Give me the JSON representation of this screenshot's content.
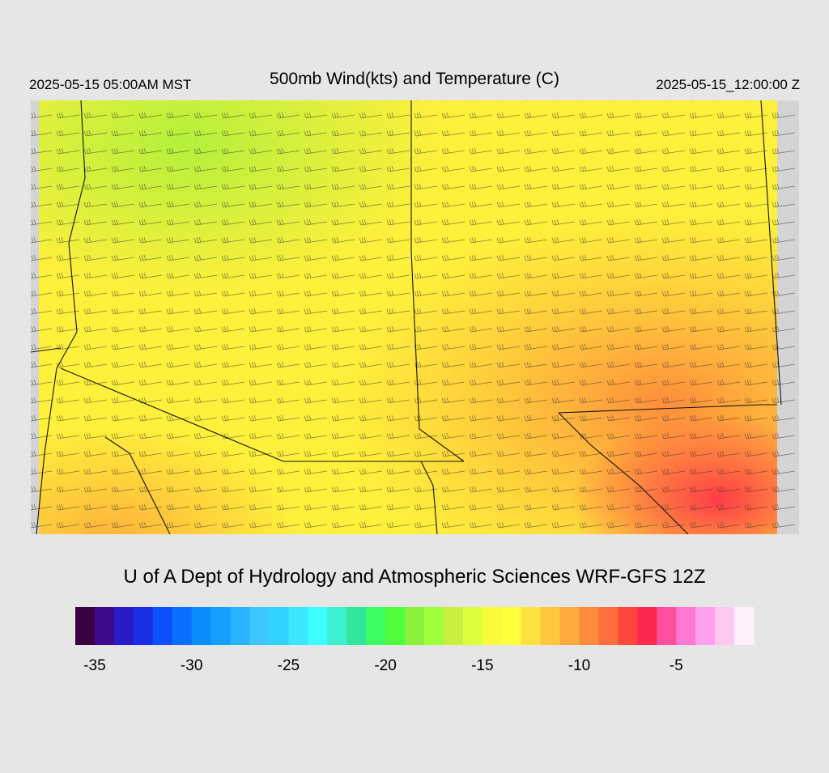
{
  "header": {
    "left": "2025-05-15 05:00AM MST",
    "title": "500mb Wind(kts) and Temperature (C)",
    "right": "2025-05-15_12:00:00 Z"
  },
  "credit": "U of A Dept of Hydrology and Atmospheric Sciences WRF-GFS 12Z",
  "colorbar": {
    "range": [
      -36,
      -1
    ],
    "ticks": [
      -35,
      -30,
      -25,
      -20,
      -15,
      -10,
      -5
    ],
    "colors": [
      "#3a0040",
      "#3c0a8c",
      "#2a1ac8",
      "#1a2ee6",
      "#0a50ff",
      "#0a6eff",
      "#0a8cff",
      "#14a0ff",
      "#28b4ff",
      "#3cc8ff",
      "#32d2ff",
      "#3ce6ff",
      "#3cffff",
      "#3cf0d2",
      "#32e69b",
      "#3cff64",
      "#50ff3c",
      "#8cf03c",
      "#a0ff3c",
      "#c8f03c",
      "#dcff3c",
      "#fafa3c",
      "#ffff3c",
      "#ffe13c",
      "#ffc83c",
      "#ffaa3c",
      "#ff8c3c",
      "#ff6e3c",
      "#ff463c",
      "#ff2850",
      "#ff50a0",
      "#ff78d2",
      "#ffa0f0",
      "#ffc8f0",
      "#fff0fa"
    ]
  }
}
